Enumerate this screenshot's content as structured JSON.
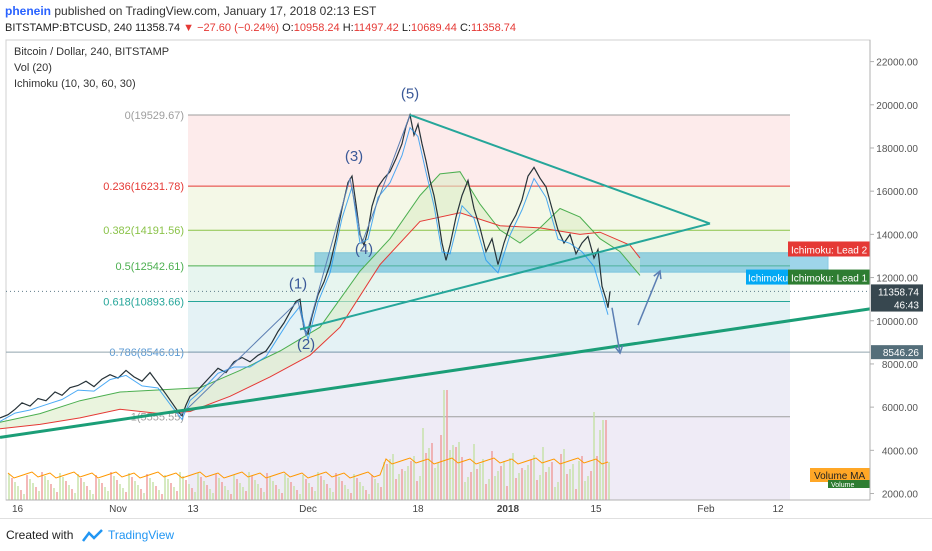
{
  "publication": {
    "author": "phenein",
    "text": "published on TradingView.com, January 17, 2018 02:13 EST"
  },
  "quote": {
    "symbol": "BITSTAMP:BTCUSD, 240",
    "last": "11358.74",
    "arrow": "▼",
    "change": "−27.60 (−0.24%)",
    "o_label": "O:",
    "o": "10958.24",
    "h_label": "H:",
    "h": "11497.42",
    "l_label": "L:",
    "l": "10689.44",
    "c_label": "C:",
    "c": "11358.74"
  },
  "legend": {
    "title": "Bitcoin / Dollar, 240, BITSTAMP",
    "vol": "Vol (20)",
    "ichimoku": "Ichimoku (10, 30, 60, 30)"
  },
  "chart_data": {
    "type": "line",
    "y_axis_ticks": [
      "22000.00",
      "20000.00",
      "18000.00",
      "16000.00",
      "14000.00",
      "12000.00",
      "10000.00",
      "8000.00",
      "6000.00",
      "4000.00",
      "2000.00"
    ],
    "y_tick_values": [
      22000,
      20000,
      18000,
      16000,
      14000,
      12000,
      10000,
      8000,
      6000,
      4000,
      2000
    ],
    "ylim": [
      1700,
      23000
    ],
    "x_axis_ticks": [
      "16",
      "Nov",
      "13",
      "Dec",
      "18",
      "2018",
      "15",
      "Feb",
      "12"
    ],
    "fib_levels": [
      {
        "label": "0(19529.67)",
        "value": 19529.67,
        "color": "#9e9e9e"
      },
      {
        "label": "0.236(16231.78)",
        "value": 16231.78,
        "color": "#e53935"
      },
      {
        "label": "0.382(14191.56)",
        "value": 14191.56,
        "color": "#8bc34a"
      },
      {
        "label": "0.5(12542.61)",
        "value": 12542.61,
        "color": "#4caf50"
      },
      {
        "label": "0.618(10893.66)",
        "value": 10893.66,
        "color": "#26a69a"
      },
      {
        "label": "0.786(8546.01)",
        "value": 8546.01,
        "color": "#5c9bd5"
      },
      {
        "label": "1(5555.55)",
        "value": 5555.55,
        "color": "#9e9e9e"
      }
    ],
    "wave_labels": [
      "(1)",
      "(2)",
      "(3)",
      "(4)",
      "(5)"
    ],
    "price_path": [
      [
        0,
        5500
      ],
      [
        8,
        5650
      ],
      [
        15,
        5900
      ],
      [
        22,
        6200
      ],
      [
        30,
        6050
      ],
      [
        38,
        6400
      ],
      [
        46,
        6300
      ],
      [
        55,
        6700
      ],
      [
        62,
        6550
      ],
      [
        70,
        6900
      ],
      [
        78,
        7000
      ],
      [
        86,
        7200
      ],
      [
        94,
        6950
      ],
      [
        102,
        7300
      ],
      [
        110,
        7500
      ],
      [
        118,
        7350
      ],
      [
        126,
        7700
      ],
      [
        134,
        7400
      ],
      [
        142,
        7200
      ],
      [
        150,
        7600
      ],
      [
        158,
        7100
      ],
      [
        166,
        6600
      ],
      [
        172,
        6200
      ],
      [
        178,
        5800
      ],
      [
        182,
        5600
      ],
      [
        186,
        6100
      ],
      [
        190,
        6500
      ],
      [
        196,
        6700
      ],
      [
        202,
        7000
      ],
      [
        210,
        7400
      ],
      [
        218,
        7800
      ],
      [
        226,
        7600
      ],
      [
        234,
        8100
      ],
      [
        242,
        8300
      ],
      [
        250,
        8100
      ],
      [
        258,
        8400
      ],
      [
        266,
        8600
      ],
      [
        272,
        9000
      ],
      [
        278,
        9500
      ],
      [
        284,
        9900
      ],
      [
        290,
        10400
      ],
      [
        296,
        10900
      ],
      [
        300,
        11000
      ],
      [
        304,
        9600
      ],
      [
        308,
        9400
      ],
      [
        312,
        10200
      ],
      [
        318,
        11200
      ],
      [
        324,
        11800
      ],
      [
        330,
        12600
      ],
      [
        336,
        13800
      ],
      [
        342,
        15200
      ],
      [
        348,
        16400
      ],
      [
        352,
        16700
      ],
      [
        356,
        15400
      ],
      [
        360,
        14000
      ],
      [
        364,
        13500
      ],
      [
        368,
        14200
      ],
      [
        372,
        15300
      ],
      [
        378,
        16200
      ],
      [
        384,
        16600
      ],
      [
        390,
        16900
      ],
      [
        396,
        17500
      ],
      [
        402,
        18200
      ],
      [
        406,
        19000
      ],
      [
        410,
        19530
      ],
      [
        414,
        18600
      ],
      [
        418,
        19100
      ],
      [
        422,
        18200
      ],
      [
        426,
        17400
      ],
      [
        430,
        16500
      ],
      [
        434,
        15800
      ],
      [
        438,
        14800
      ],
      [
        442,
        13600
      ],
      [
        446,
        12800
      ],
      [
        450,
        13500
      ],
      [
        456,
        14800
      ],
      [
        462,
        15800
      ],
      [
        468,
        16500
      ],
      [
        474,
        15200
      ],
      [
        480,
        14300
      ],
      [
        486,
        13200
      ],
      [
        492,
        13800
      ],
      [
        498,
        12600
      ],
      [
        504,
        13600
      ],
      [
        510,
        14400
      ],
      [
        516,
        14900
      ],
      [
        522,
        15600
      ],
      [
        528,
        16700
      ],
      [
        534,
        17100
      ],
      [
        540,
        16600
      ],
      [
        546,
        16200
      ],
      [
        552,
        15200
      ],
      [
        558,
        14200
      ],
      [
        564,
        13600
      ],
      [
        570,
        14000
      ],
      [
        576,
        13100
      ],
      [
        582,
        13600
      ],
      [
        588,
        13900
      ],
      [
        594,
        12900
      ],
      [
        598,
        13300
      ],
      [
        602,
        11600
      ],
      [
        606,
        11000
      ],
      [
        608,
        10600
      ],
      [
        610,
        11358
      ]
    ],
    "ichimoku_lead1": [
      [
        0,
        5300
      ],
      [
        40,
        5700
      ],
      [
        80,
        6300
      ],
      [
        120,
        6700
      ],
      [
        160,
        6800
      ],
      [
        200,
        6900
      ],
      [
        240,
        7700
      ],
      [
        280,
        8600
      ],
      [
        320,
        9700
      ],
      [
        360,
        12300
      ],
      [
        390,
        13800
      ],
      [
        420,
        15800
      ],
      [
        440,
        16800
      ],
      [
        460,
        16900
      ],
      [
        480,
        15400
      ],
      [
        500,
        14200
      ],
      [
        520,
        13600
      ],
      [
        540,
        14300
      ],
      [
        560,
        15200
      ],
      [
        580,
        14800
      ],
      [
        600,
        13800
      ],
      [
        620,
        13200
      ],
      [
        640,
        12100
      ]
    ],
    "ichimoku_lead2": [
      [
        0,
        5000
      ],
      [
        40,
        5200
      ],
      [
        80,
        5500
      ],
      [
        120,
        5900
      ],
      [
        160,
        5700
      ],
      [
        190,
        5800
      ],
      [
        230,
        6500
      ],
      [
        270,
        7400
      ],
      [
        310,
        8400
      ],
      [
        340,
        9700
      ],
      [
        380,
        12600
      ],
      [
        420,
        14600
      ],
      [
        460,
        15000
      ],
      [
        500,
        14400
      ],
      [
        540,
        14300
      ],
      [
        580,
        14000
      ],
      [
        600,
        14100
      ],
      [
        630,
        13500
      ],
      [
        640,
        12900
      ]
    ],
    "trendlines": [
      {
        "from": [
          0,
          4600
        ],
        "to": [
          870,
          10550
        ],
        "color": "#1b9e77",
        "width": 3
      },
      {
        "from": [
          300,
          9600
        ],
        "to": [
          710,
          14500
        ],
        "color": "#26a69a",
        "width": 2
      },
      {
        "from": [
          410,
          19530
        ],
        "to": [
          710,
          14500
        ],
        "color": "#26a69a",
        "width": 2
      }
    ],
    "arrows": [
      {
        "from": [
          612,
          10600
        ],
        "to": [
          620,
          8500
        ]
      },
      {
        "from": [
          638,
          9800
        ],
        "to": [
          660,
          12300
        ]
      }
    ],
    "ichimoku_labels": [
      {
        "text": "Ichimoku: Lead 2",
        "value": 13300,
        "color": "#e53935"
      },
      {
        "text": "Ichimoku: Lead 1",
        "value": 12000,
        "color": "#2e7d32"
      },
      {
        "text": "Ichimoku",
        "value": 12000,
        "color": "#03a9f4"
      }
    ],
    "price_labels": [
      {
        "text": "11358.74",
        "value": 11358.74,
        "color": "#37474f"
      },
      {
        "text": "46:43",
        "value": 10750,
        "color": "#37474f"
      },
      {
        "text": "8546.26",
        "value": 8546.26,
        "color": "#546e7a"
      }
    ],
    "volume_labels": [
      "Volume MA",
      "Volume"
    ]
  },
  "footer": {
    "created_with": "Created with",
    "brand": "TradingView"
  },
  "colors": {
    "accent": "#2962ff",
    "down": "#e53935",
    "trend": "#1b9e77",
    "lead1": "#4caf50",
    "lead2": "#e53935"
  }
}
